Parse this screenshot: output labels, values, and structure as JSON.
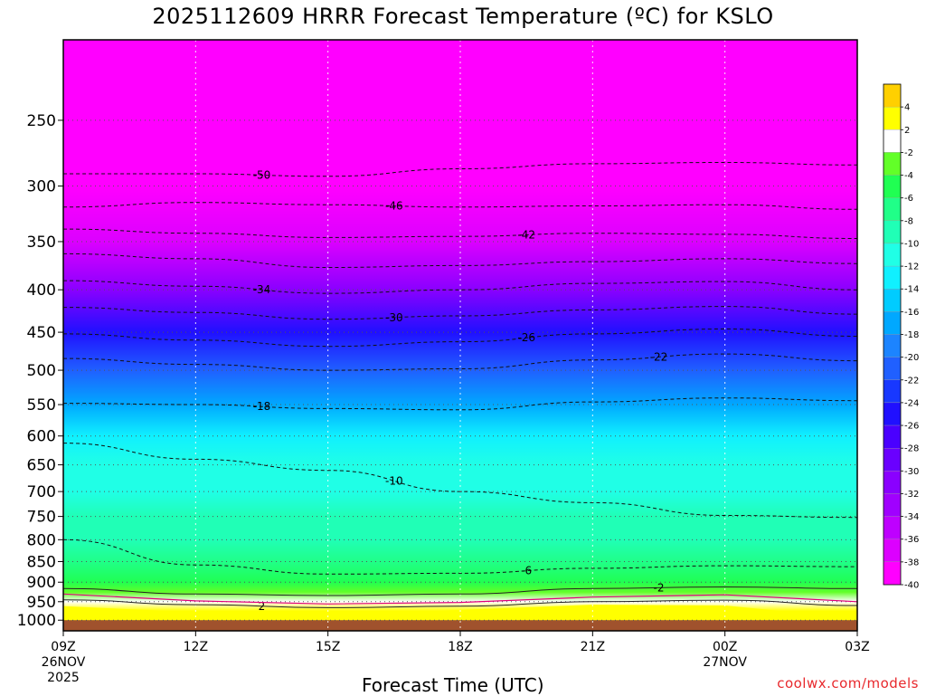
{
  "title": "2025112609 HRRR Forecast Temperature (ºC) for KSLO",
  "credit": "coolwx.com/models",
  "chart_data": {
    "type": "heatmap",
    "title": "2025112609 HRRR Forecast Temperature (ºC) for KSLO",
    "xlabel": "Forecast Time (UTC)",
    "ylabel": "",
    "x_ticks": [
      {
        "hour": 0,
        "label": "09Z",
        "sub": [
          "26NOV",
          "2025"
        ]
      },
      {
        "hour": 3,
        "label": "12Z",
        "sub": []
      },
      {
        "hour": 6,
        "label": "15Z",
        "sub": []
      },
      {
        "hour": 9,
        "label": "18Z",
        "sub": []
      },
      {
        "hour": 12,
        "label": "21Z",
        "sub": []
      },
      {
        "hour": 15,
        "label": "00Z",
        "sub": [
          "27NOV"
        ]
      },
      {
        "hour": 18,
        "label": "03Z",
        "sub": []
      }
    ],
    "y_ticks": [
      250,
      300,
      350,
      400,
      450,
      500,
      550,
      600,
      650,
      700,
      750,
      800,
      850,
      900,
      950,
      1000
    ],
    "y_scale": "log-pressure (reversed)",
    "xlim": [
      0,
      18
    ],
    "ylim": [
      1030,
      200
    ],
    "grid": true,
    "level_profile_hour15": [
      {
        "p": 1000,
        "t": 2
      },
      {
        "p": 975,
        "t": 3
      },
      {
        "p": 950,
        "t": 1
      },
      {
        "p": 925,
        "t": -3
      },
      {
        "p": 900,
        "t": -5
      },
      {
        "p": 850,
        "t": -7
      },
      {
        "p": 800,
        "t": -9
      },
      {
        "p": 750,
        "t": -10
      },
      {
        "p": 700,
        "t": -11
      },
      {
        "p": 650,
        "t": -12
      },
      {
        "p": 600,
        "t": -14
      },
      {
        "p": 550,
        "t": -17
      },
      {
        "p": 500,
        "t": -21
      },
      {
        "p": 450,
        "t": -26
      },
      {
        "p": 400,
        "t": -32
      },
      {
        "p": 350,
        "t": -38
      },
      {
        "p": 300,
        "t": -45
      },
      {
        "p": 250,
        "t": -49
      },
      {
        "p": 200,
        "t": -52
      }
    ],
    "contours": [
      {
        "value": -50,
        "label": "-50",
        "p": [
          290,
          290,
          292,
          286,
          282,
          281,
          283
        ]
      },
      {
        "value": -46,
        "label": "-46",
        "p": [
          318,
          314,
          316,
          318,
          317,
          316,
          320
        ]
      },
      {
        "value": -42,
        "label": "-42",
        "p": [
          338,
          342,
          346,
          345,
          342,
          343,
          347
        ]
      },
      {
        "value": -38,
        "label": "",
        "p": [
          362,
          367,
          376,
          374,
          370,
          367,
          372
        ]
      },
      {
        "value": -34,
        "label": "-34",
        "p": [
          390,
          396,
          404,
          400,
          393,
          391,
          400
        ]
      },
      {
        "value": -30,
        "label": "-30",
        "p": [
          420,
          426,
          434,
          430,
          423,
          419,
          428
        ]
      },
      {
        "value": -26,
        "label": "-26",
        "p": [
          452,
          460,
          468,
          462,
          452,
          446,
          455
        ]
      },
      {
        "value": -22,
        "label": "-22",
        "p": [
          484,
          492,
          500,
          498,
          486,
          478,
          487
        ]
      },
      {
        "value": -18,
        "label": "-18",
        "p": [
          548,
          550,
          556,
          558,
          546,
          540,
          544
        ]
      },
      {
        "value": -10,
        "label": "-10",
        "p": [
          612,
          640,
          660,
          700,
          722,
          748,
          752
        ]
      },
      {
        "value": -6,
        "label": "-6",
        "p": [
          800,
          858,
          880,
          878,
          866,
          860,
          862
        ]
      },
      {
        "value": -2,
        "label": "-2",
        "p": [
          916,
          930,
          934,
          930,
          916,
          912,
          916
        ]
      },
      {
        "value": 2,
        "label": "2",
        "p": [
          945,
          958,
          966,
          962,
          950,
          946,
          960
        ]
      }
    ],
    "colorbar": {
      "labels": [
        "4",
        "2",
        "-2",
        "-4",
        "-6",
        "-8",
        "-10",
        "-12",
        "-14",
        "-16",
        "-18",
        "-20",
        "-22",
        "-24",
        "-26",
        "-28",
        "-30",
        "-32",
        "-34",
        "-36",
        "-38",
        "-40"
      ],
      "colors": [
        "#ffd000",
        "#ffff00",
        "#ffffff",
        "#62ff28",
        "#20ff52",
        "#20ff88",
        "#20ffb6",
        "#20ffe6",
        "#10f0ff",
        "#00ccff",
        "#00a8ff",
        "#1c84ff",
        "#2060ff",
        "#1838ff",
        "#2010ff",
        "#4a00ff",
        "#6a00ff",
        "#8a00ff",
        "#a000ff",
        "#be00ff",
        "#dc00ff",
        "#ff00ff"
      ]
    },
    "colors": {
      "surface": "#a0522d",
      "freezing_line": "#e0007a",
      "above_zero": "#ffff00"
    }
  }
}
